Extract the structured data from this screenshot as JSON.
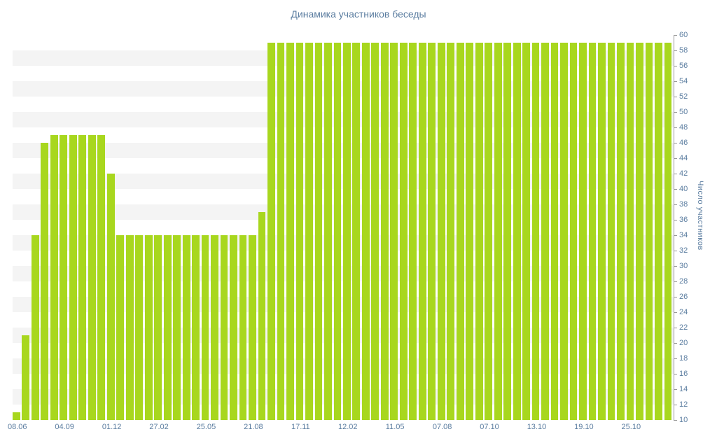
{
  "title": "Динамика участников беседы",
  "colors": {
    "bar": "#a8d71e",
    "text": "#5b7da0",
    "band": "#f4f4f4",
    "axis_line": "#999999",
    "background": "#ffffff"
  },
  "chart_data": {
    "type": "bar",
    "title": "Динамика участников беседы",
    "xlabel": "",
    "ylabel": "Число участников",
    "ylim": [
      10,
      60
    ],
    "ytick_step": 2,
    "legend": "none",
    "grid": "horizontal striped bands",
    "x_label_every": 5,
    "x_labels": [
      "08.06",
      "04.09",
      "01.12",
      "27.02",
      "25.05",
      "21.08",
      "17.11",
      "12.02",
      "11.05",
      "07.08",
      "07.10",
      "13.10",
      "19.10",
      "25.10"
    ],
    "values": [
      11,
      21,
      34,
      46,
      47,
      47,
      47,
      47,
      47,
      47,
      42,
      34,
      34,
      34,
      34,
      34,
      34,
      34,
      34,
      34,
      34,
      34,
      34,
      34,
      34,
      34,
      37,
      59,
      59,
      59,
      59,
      59,
      59,
      59,
      59,
      59,
      59,
      59,
      59,
      59,
      59,
      59,
      59,
      59,
      59,
      59,
      59,
      59,
      59,
      59,
      59,
      59,
      59,
      59,
      59,
      59,
      59,
      59,
      59,
      59,
      59,
      59,
      59,
      59,
      59,
      59,
      59,
      59,
      59,
      59
    ]
  }
}
